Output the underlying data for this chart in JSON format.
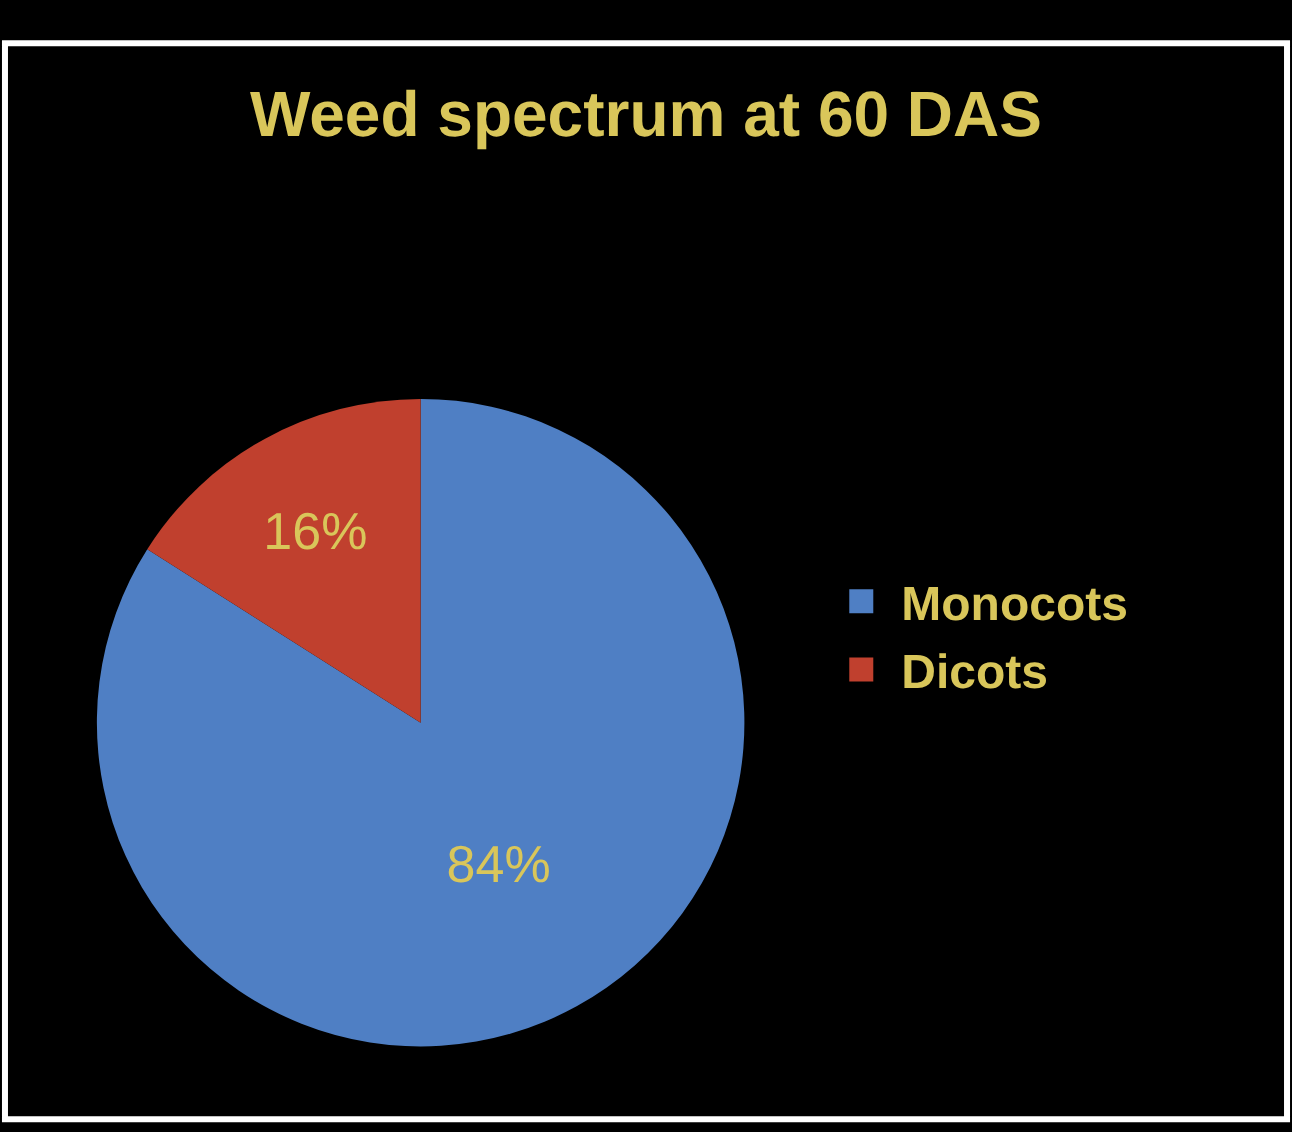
{
  "chart_data": {
    "type": "pie",
    "title": "Weed spectrum at 60 DAS",
    "categories": [
      "Monocots",
      "Dicots"
    ],
    "values": [
      84,
      16
    ],
    "value_labels": [
      "84%",
      "16%"
    ],
    "colors": [
      "#4f7fc4",
      "#c0402e"
    ],
    "legend": "right"
  }
}
